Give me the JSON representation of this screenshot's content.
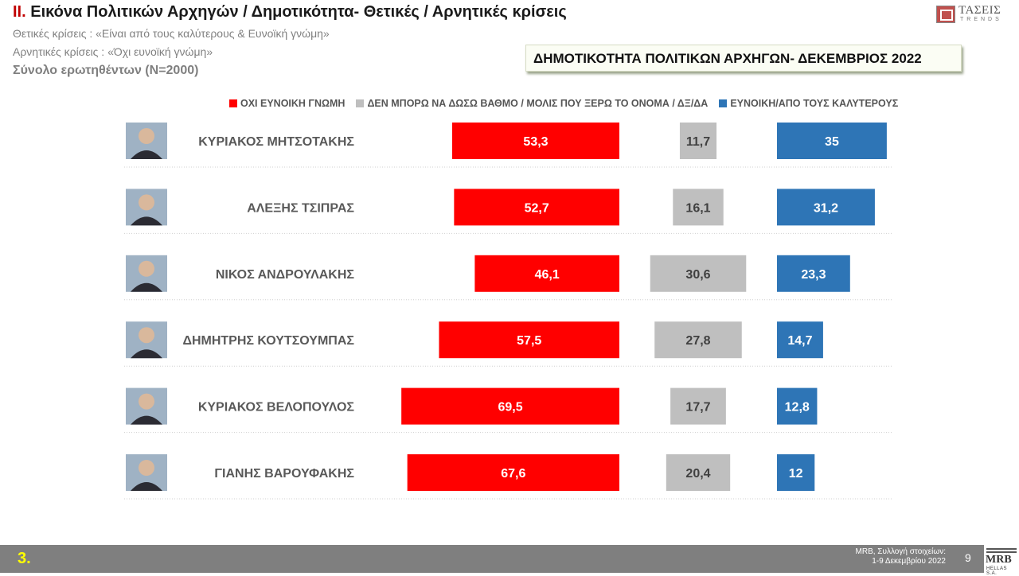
{
  "header": {
    "title_num": "II.",
    "title_text": "Εικόνα Πολιτικών Αρχηγών  / Δημοτικότητα- Θετικές / Αρνητικές κρίσεις",
    "sub1": "Θετικές κρίσεις : «Είναι από τους καλύτερους &  Ευνοϊκή γνώμη»",
    "sub2": "Αρνητικές κρίσεις : «Όχι ευνοϊκή γνώμη»",
    "sub3": "Σύνολο ερωτηθέντων (N=2000)",
    "logo_name": "ΤΑΣΕΙΣ",
    "logo_sub": "TRENDS"
  },
  "banner": "ΔΗΜΟΤΙΚΟΤΗΤΑ ΠΟΛΙΤΙΚΩΝ ΑΡΧΗΓΩΝ- ΔΕΚΕΜΒΡΙΟΣ 2022",
  "colors": {
    "negative": "#ff0000",
    "neutral": "#bfbfbf",
    "positive": "#2e75b6"
  },
  "chart_data": {
    "type": "bar",
    "orientation": "horizontal",
    "categories": [
      "ΚΥΡΙΑΚΟΣ ΜΗΤΣΟΤΑΚΗΣ",
      "ΑΛΕΞΗΣ ΤΣΙΠΡΑΣ",
      "ΝΙΚΟΣ ΑΝΔΡΟΥΛΑΚΗΣ",
      "ΔΗΜΗΤΡΗΣ ΚΟΥΤΣΟΥΜΠΑΣ",
      "ΚΥΡΙΑΚΟΣ ΒΕΛΟΠΟΥΛΟΣ",
      "ΓΙΑΝΗΣ ΒΑΡΟΥΦΑΚΗΣ"
    ],
    "series": [
      {
        "name": "ΟΧΙ ΕΥΝΟΙΚΗ ΓΝΩΜΗ",
        "values": [
          53.3,
          52.7,
          46.1,
          57.5,
          69.5,
          67.6
        ],
        "labels": [
          "53,3",
          "52,7",
          "46,1",
          "57,5",
          "69,5",
          "67,6"
        ]
      },
      {
        "name": "ΔΕΝ ΜΠΟΡΩ ΝΑ ΔΩΣΩ ΒΑΘΜΟ / ΜΟΛΙΣ ΠΟΥ ΞΕΡΩ ΤΟ ΟΝΟΜΑ / ΔΞ/ΔΑ",
        "values": [
          11.7,
          16.1,
          30.6,
          27.8,
          17.7,
          20.4
        ],
        "labels": [
          "11,7",
          "16,1",
          "30,6",
          "27,8",
          "17,7",
          "20,4"
        ]
      },
      {
        "name": "ΕΥΝΟΙΚΗ/ΑΠΟ ΤΟΥΣ ΚΑΛΥΤΕΡΟΥΣ",
        "values": [
          35,
          31.2,
          23.3,
          14.7,
          12.8,
          12
        ],
        "labels": [
          "35",
          "31,2",
          "23,3",
          "14,7",
          "12,8",
          "12"
        ]
      }
    ],
    "legend": "top"
  },
  "footer": {
    "section": "3.",
    "source_line1": "MRB, Συλλογή στοιχείων:",
    "source_line2": "1-9 Δεκεμβρίου 2022",
    "page": "9",
    "logo": "MRB",
    "logo_sub": "HELLAS S.A."
  }
}
